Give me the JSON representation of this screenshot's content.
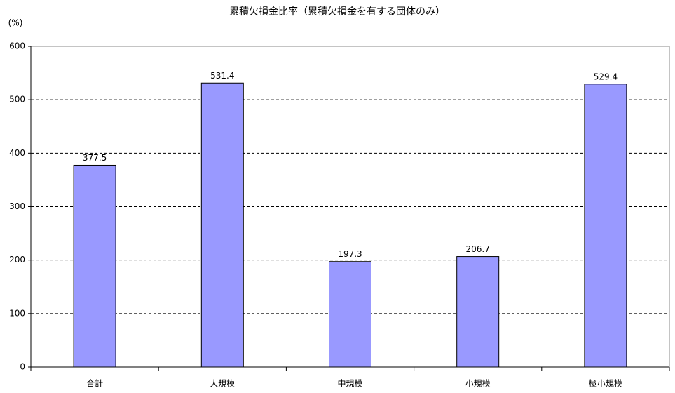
{
  "chart_data": {
    "type": "bar",
    "title": "累積欠損金比率（累積欠損金を有する団体のみ）",
    "y_label": "(%)",
    "categories": [
      "合計",
      "大規模",
      "中規模",
      "小規模",
      "極小規模"
    ],
    "values": [
      377.5,
      531.4,
      197.3,
      206.7,
      529.4
    ],
    "color": "#9999ff",
    "ylim": [
      0,
      600
    ],
    "yticks": [
      0,
      100,
      200,
      300,
      400,
      500,
      600
    ],
    "grid": true
  }
}
